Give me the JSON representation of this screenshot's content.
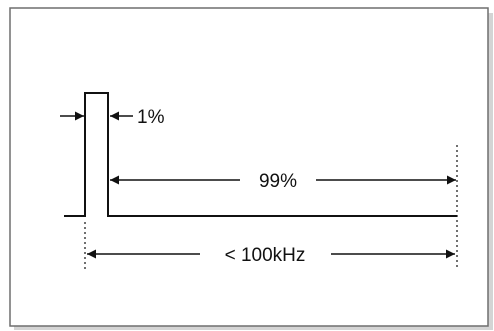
{
  "labels": {
    "pulse_width": "1%",
    "off_time": "99%",
    "period": "< 100kHz"
  },
  "colors": {
    "frame_border": "#6e6e6e",
    "frame_shadow": "#bdbdbd",
    "line": "#111111",
    "background": "#ffffff"
  }
}
